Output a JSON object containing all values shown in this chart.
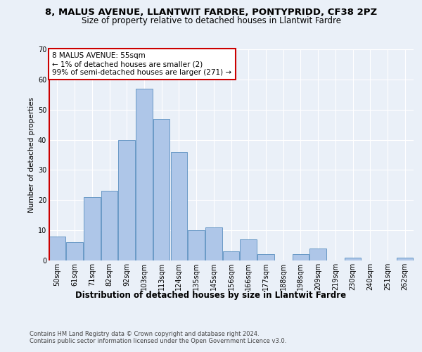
{
  "title1": "8, MALUS AVENUE, LLANTWIT FARDRE, PONTYPRIDD, CF38 2PZ",
  "title2": "Size of property relative to detached houses in Llantwit Fardre",
  "xlabel": "Distribution of detached houses by size in Llantwit Fardre",
  "ylabel": "Number of detached properties",
  "categories": [
    "50sqm",
    "61sqm",
    "71sqm",
    "82sqm",
    "92sqm",
    "103sqm",
    "113sqm",
    "124sqm",
    "135sqm",
    "145sqm",
    "156sqm",
    "166sqm",
    "177sqm",
    "188sqm",
    "198sqm",
    "209sqm",
    "219sqm",
    "230sqm",
    "240sqm",
    "251sqm",
    "262sqm"
  ],
  "values": [
    8,
    6,
    21,
    23,
    40,
    57,
    47,
    36,
    10,
    11,
    3,
    7,
    2,
    0,
    2,
    4,
    0,
    1,
    0,
    0,
    1
  ],
  "bar_color": "#aec6e8",
  "bar_edge_color": "#5a8fc0",
  "highlight_color": "#cc0000",
  "annotation_text": "8 MALUS AVENUE: 55sqm\n← 1% of detached houses are smaller (2)\n99% of semi-detached houses are larger (271) →",
  "annotation_box_color": "#ffffff",
  "annotation_box_edge_color": "#cc0000",
  "ylim": [
    0,
    70
  ],
  "yticks": [
    0,
    10,
    20,
    30,
    40,
    50,
    60,
    70
  ],
  "footer_text": "Contains HM Land Registry data © Crown copyright and database right 2024.\nContains public sector information licensed under the Open Government Licence v3.0.",
  "background_color": "#eaf0f8",
  "plot_background": "#eaf0f8",
  "grid_color": "#ffffff",
  "title1_fontsize": 9.5,
  "title2_fontsize": 8.5,
  "xlabel_fontsize": 8.5,
  "ylabel_fontsize": 7.5,
  "tick_fontsize": 7,
  "annotation_fontsize": 7.5,
  "footer_fontsize": 6
}
